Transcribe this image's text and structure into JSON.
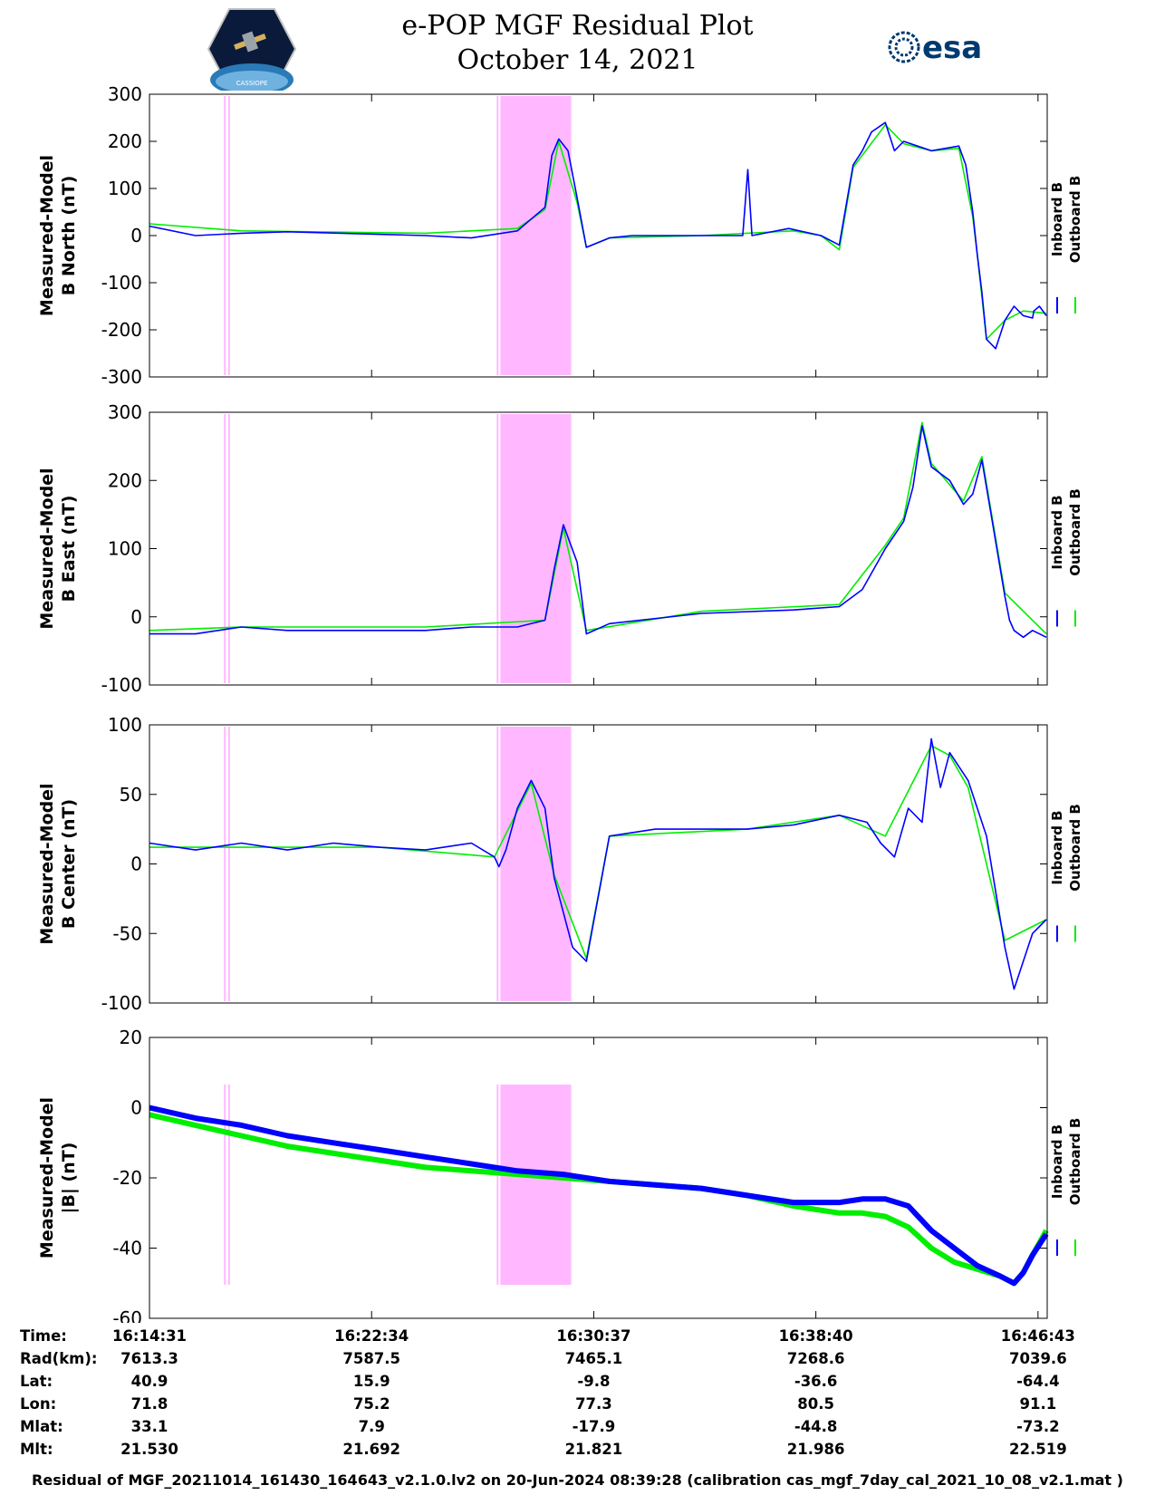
{
  "header": {
    "title_line1": "e-POP MGF Residual Plot",
    "title_line2": "October 14, 2021",
    "logo_left": "CASSIOPE",
    "logo_right": "esa"
  },
  "colors": {
    "inboard": "#0000ff",
    "outboard": "#00ee00",
    "highlight": "#ffb8ff"
  },
  "chart_data": [
    {
      "type": "line",
      "ylabel": [
        "Measured-Model",
        "B North (nT)"
      ],
      "ylim": [
        -300,
        300
      ],
      "yticks": [
        300,
        200,
        100,
        0,
        -100,
        -200,
        -300
      ],
      "legend": [
        "Inboard B",
        "Outboard B"
      ],
      "series": [
        {
          "name": "Inboard B",
          "x": [
            0,
            100,
            200,
            300,
            600,
            700,
            800,
            860,
            875,
            890,
            910,
            930,
            950,
            1000,
            1050,
            1100,
            1200,
            1290,
            1301,
            1310,
            1390,
            1460,
            1500,
            1530,
            1550,
            1570,
            1600,
            1620,
            1640,
            1700,
            1760,
            1775,
            1790,
            1800,
            1810,
            1820,
            1840,
            1860,
            1880,
            1900,
            1920,
            1923,
            1935,
            1950
          ],
          "y": [
            20,
            0,
            5,
            8,
            0,
            -5,
            10,
            60,
            170,
            205,
            180,
            80,
            -25,
            -5,
            0,
            0,
            0,
            0,
            140,
            0,
            15,
            0,
            -20,
            150,
            180,
            220,
            240,
            180,
            200,
            180,
            190,
            150,
            50,
            -40,
            -120,
            -220,
            -240,
            -180,
            -150,
            -170,
            -175,
            -160,
            -150,
            -170
          ]
        },
        {
          "name": "Outboard B",
          "x": [
            0,
            200,
            600,
            800,
            860,
            890,
            930,
            950,
            1000,
            1200,
            1400,
            1460,
            1500,
            1530,
            1600,
            1640,
            1700,
            1760,
            1790,
            1800,
            1820,
            1860,
            1900,
            1950
          ],
          "y": [
            25,
            10,
            5,
            15,
            55,
            200,
            70,
            -25,
            -5,
            0,
            10,
            0,
            -30,
            145,
            235,
            195,
            180,
            185,
            40,
            -40,
            -220,
            -180,
            -160,
            -165
          ]
        }
      ]
    },
    {
      "type": "line",
      "ylabel": [
        "Measured-Model",
        "B East (nT)"
      ],
      "ylim": [
        -100,
        300
      ],
      "yticks": [
        300,
        200,
        100,
        0,
        -100
      ],
      "legend": [
        "Inboard B",
        "Outboard B"
      ],
      "series": [
        {
          "name": "Inboard B",
          "x": [
            0,
            100,
            200,
            300,
            600,
            700,
            800,
            860,
            880,
            900,
            930,
            950,
            1000,
            1200,
            1400,
            1500,
            1550,
            1600,
            1640,
            1660,
            1680,
            1700,
            1740,
            1770,
            1790,
            1810,
            1830,
            1860,
            1870,
            1880,
            1900,
            1920,
            1950
          ],
          "y": [
            -25,
            -25,
            -15,
            -20,
            -20,
            -15,
            -15,
            -5,
            70,
            135,
            80,
            -25,
            -10,
            5,
            10,
            15,
            40,
            100,
            140,
            190,
            280,
            220,
            200,
            165,
            180,
            230,
            150,
            30,
            -5,
            -20,
            -30,
            -20,
            -30
          ]
        },
        {
          "name": "Outboard B",
          "x": [
            0,
            200,
            600,
            860,
            900,
            950,
            1200,
            1500,
            1600,
            1640,
            1680,
            1700,
            1770,
            1810,
            1860,
            1950
          ],
          "y": [
            -20,
            -15,
            -15,
            -5,
            130,
            -20,
            8,
            18,
            105,
            145,
            285,
            225,
            170,
            235,
            35,
            -25
          ]
        }
      ]
    },
    {
      "type": "line",
      "ylabel": [
        "Measured-Model",
        "B Center (nT)"
      ],
      "ylim": [
        -100,
        100
      ],
      "yticks": [
        100,
        50,
        0,
        -50,
        -100
      ],
      "legend": [
        "Inboard B",
        "Outboard B"
      ],
      "series": [
        {
          "name": "Inboard B",
          "x": [
            0,
            100,
            200,
            300,
            400,
            500,
            600,
            700,
            750,
            760,
            775,
            800,
            830,
            860,
            880,
            920,
            950,
            1000,
            1100,
            1200,
            1300,
            1400,
            1500,
            1560,
            1590,
            1620,
            1650,
            1680,
            1700,
            1720,
            1740,
            1780,
            1820,
            1860,
            1880,
            1900,
            1920,
            1950
          ],
          "y": [
            15,
            10,
            15,
            10,
            15,
            12,
            10,
            15,
            5,
            -2,
            10,
            40,
            60,
            40,
            -10,
            -60,
            -70,
            20,
            25,
            25,
            25,
            28,
            35,
            30,
            15,
            5,
            40,
            30,
            90,
            55,
            80,
            60,
            20,
            -60,
            -90,
            -70,
            -50,
            -40
          ]
        },
        {
          "name": "Outboard B",
          "x": [
            0,
            200,
            500,
            750,
            800,
            830,
            880,
            950,
            1000,
            1300,
            1500,
            1600,
            1700,
            1740,
            1780,
            1860,
            1950
          ],
          "y": [
            12,
            12,
            12,
            5,
            38,
            58,
            -8,
            -68,
            20,
            25,
            35,
            20,
            85,
            78,
            55,
            -55,
            -40
          ]
        }
      ]
    },
    {
      "type": "line",
      "ylabel": [
        "Measured-Model",
        "|B| (nT)"
      ],
      "ylim": [
        -60,
        20
      ],
      "yticks": [
        20,
        0,
        -20,
        -40,
        -60
      ],
      "legend": [
        "Inboard B",
        "Outboard B"
      ],
      "series": [
        {
          "name": "Inboard B",
          "x": [
            0,
            100,
            200,
            300,
            400,
            500,
            600,
            700,
            800,
            900,
            1000,
            1100,
            1200,
            1300,
            1400,
            1500,
            1550,
            1600,
            1650,
            1700,
            1750,
            1800,
            1850,
            1880,
            1900,
            1920,
            1950
          ],
          "y": [
            0,
            -3,
            -5,
            -8,
            -10,
            -12,
            -14,
            -16,
            -18,
            -19,
            -21,
            -22,
            -23,
            -25,
            -27,
            -27,
            -26,
            -26,
            -28,
            -35,
            -40,
            -45,
            -48,
            -50,
            -47,
            -42,
            -36
          ]
        },
        {
          "name": "Outboard B",
          "x": [
            0,
            100,
            200,
            300,
            400,
            500,
            600,
            700,
            800,
            900,
            1000,
            1100,
            1200,
            1300,
            1400,
            1500,
            1550,
            1600,
            1650,
            1700,
            1750,
            1800,
            1850,
            1880,
            1900,
            1920,
            1950
          ],
          "y": [
            -2,
            -5,
            -8,
            -11,
            -13,
            -15,
            -17,
            -18,
            -19,
            -20,
            -21,
            -22,
            -23,
            -25,
            -28,
            -30,
            -30,
            -31,
            -34,
            -40,
            -44,
            -46,
            -48,
            -50,
            -47,
            -42,
            -35
          ]
        }
      ]
    }
  ],
  "highlights": [
    {
      "x_start": 162,
      "x_end": 164
    },
    {
      "x_start": 171,
      "x_end": 173
    },
    {
      "x_start": 755,
      "x_end": 757
    },
    {
      "x_start": 763,
      "x_end": 917
    }
  ],
  "time_axis": {
    "xlim": [
      0,
      1952
    ],
    "tick_positions": [
      0,
      483,
      966,
      1449,
      1932
    ]
  },
  "info_table": {
    "labels": [
      "Time:",
      "Rad(km):",
      "Lat:",
      "Lon:",
      "Mlat:",
      "Mlt:"
    ],
    "columns": [
      [
        "16:14:31",
        "7613.3",
        "40.9",
        "71.8",
        "33.1",
        "21.530"
      ],
      [
        "16:22:34",
        "7587.5",
        "15.9",
        "75.2",
        "7.9",
        "21.692"
      ],
      [
        "16:30:37",
        "7465.1",
        "-9.8",
        "77.3",
        "-17.9",
        "21.821"
      ],
      [
        "16:38:40",
        "7268.6",
        "-36.6",
        "80.5",
        "-44.8",
        "21.986"
      ],
      [
        "16:46:43",
        "7039.6",
        "-64.4",
        "91.1",
        "-73.2",
        "22.519"
      ]
    ]
  },
  "footer": "Residual of MGF_20211014_161430_164643_v2.1.0.lv2 on 20-Jun-2024 08:39:28 (calibration cas_mgf_7day_cal_2021_10_08_v2.1.mat )"
}
